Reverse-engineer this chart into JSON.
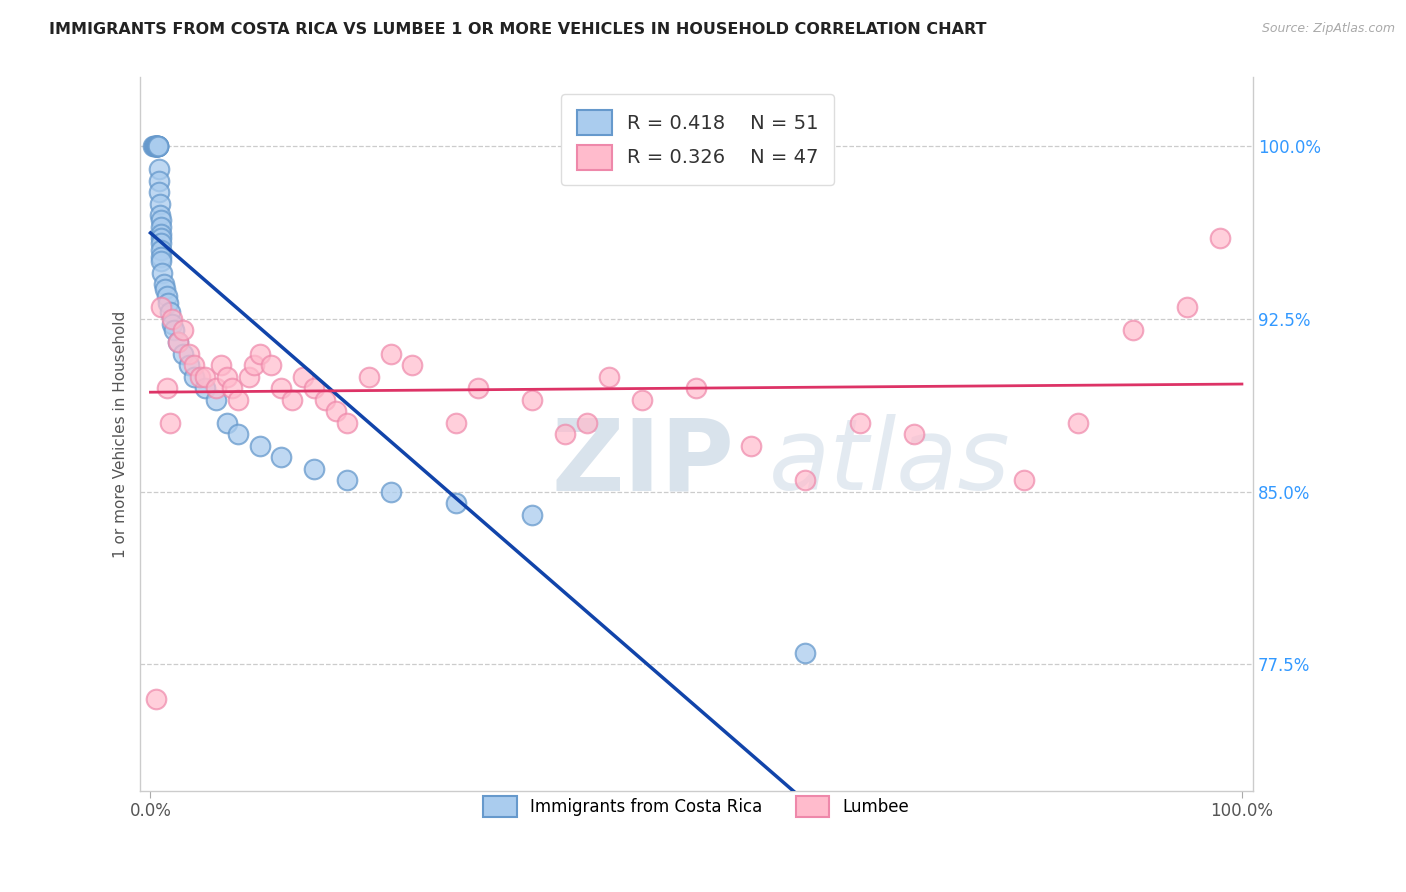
{
  "title": "IMMIGRANTS FROM COSTA RICA VS LUMBEE 1 OR MORE VEHICLES IN HOUSEHOLD CORRELATION CHART",
  "source": "Source: ZipAtlas.com",
  "ylabel": "1 or more Vehicles in Household",
  "y_tick_labels": [
    "77.5%",
    "85.0%",
    "92.5%",
    "100.0%"
  ],
  "y_tick_values": [
    0.775,
    0.85,
    0.925,
    1.0
  ],
  "xlim": [
    -0.01,
    1.01
  ],
  "ylim": [
    0.72,
    1.03
  ],
  "blue_R": 0.418,
  "blue_N": 51,
  "pink_R": 0.326,
  "pink_N": 47,
  "blue_fill_color": "#AACCEE",
  "blue_edge_color": "#6699CC",
  "pink_fill_color": "#FFBBCC",
  "pink_edge_color": "#EE88AA",
  "blue_line_color": "#1144AA",
  "pink_line_color": "#DD3366",
  "watermark_text": "ZIPatlas",
  "legend_label_blue": "Immigrants from Costa Rica",
  "legend_label_pink": "Lumbee",
  "blue_x": [
    0.002,
    0.003,
    0.004,
    0.004,
    0.005,
    0.005,
    0.005,
    0.006,
    0.006,
    0.006,
    0.007,
    0.007,
    0.007,
    0.007,
    0.008,
    0.008,
    0.008,
    0.009,
    0.009,
    0.01,
    0.01,
    0.01,
    0.01,
    0.01,
    0.01,
    0.01,
    0.01,
    0.011,
    0.012,
    0.013,
    0.015,
    0.016,
    0.018,
    0.02,
    0.022,
    0.025,
    0.03,
    0.035,
    0.04,
    0.05,
    0.06,
    0.07,
    0.08,
    0.1,
    0.12,
    0.15,
    0.18,
    0.22,
    0.28,
    0.35,
    0.6
  ],
  "blue_y": [
    1.0,
    1.0,
    1.0,
    1.0,
    1.0,
    1.0,
    1.0,
    1.0,
    1.0,
    1.0,
    1.0,
    1.0,
    1.0,
    1.0,
    0.99,
    0.985,
    0.98,
    0.975,
    0.97,
    0.968,
    0.965,
    0.962,
    0.96,
    0.958,
    0.955,
    0.952,
    0.95,
    0.945,
    0.94,
    0.938,
    0.935,
    0.932,
    0.928,
    0.923,
    0.92,
    0.915,
    0.91,
    0.905,
    0.9,
    0.895,
    0.89,
    0.88,
    0.875,
    0.87,
    0.865,
    0.86,
    0.855,
    0.85,
    0.845,
    0.84,
    0.78
  ],
  "pink_x": [
    0.005,
    0.01,
    0.015,
    0.018,
    0.02,
    0.025,
    0.03,
    0.035,
    0.04,
    0.045,
    0.05,
    0.06,
    0.065,
    0.07,
    0.075,
    0.08,
    0.09,
    0.095,
    0.1,
    0.11,
    0.12,
    0.13,
    0.14,
    0.15,
    0.16,
    0.17,
    0.18,
    0.2,
    0.22,
    0.24,
    0.28,
    0.3,
    0.35,
    0.38,
    0.4,
    0.42,
    0.45,
    0.5,
    0.55,
    0.6,
    0.65,
    0.7,
    0.8,
    0.85,
    0.9,
    0.95,
    0.98
  ],
  "pink_y": [
    0.76,
    0.93,
    0.895,
    0.88,
    0.925,
    0.915,
    0.92,
    0.91,
    0.905,
    0.9,
    0.9,
    0.895,
    0.905,
    0.9,
    0.895,
    0.89,
    0.9,
    0.905,
    0.91,
    0.905,
    0.895,
    0.89,
    0.9,
    0.895,
    0.89,
    0.885,
    0.88,
    0.9,
    0.91,
    0.905,
    0.88,
    0.895,
    0.89,
    0.875,
    0.88,
    0.9,
    0.89,
    0.895,
    0.87,
    0.855,
    0.88,
    0.875,
    0.855,
    0.88,
    0.92,
    0.93,
    0.96
  ]
}
